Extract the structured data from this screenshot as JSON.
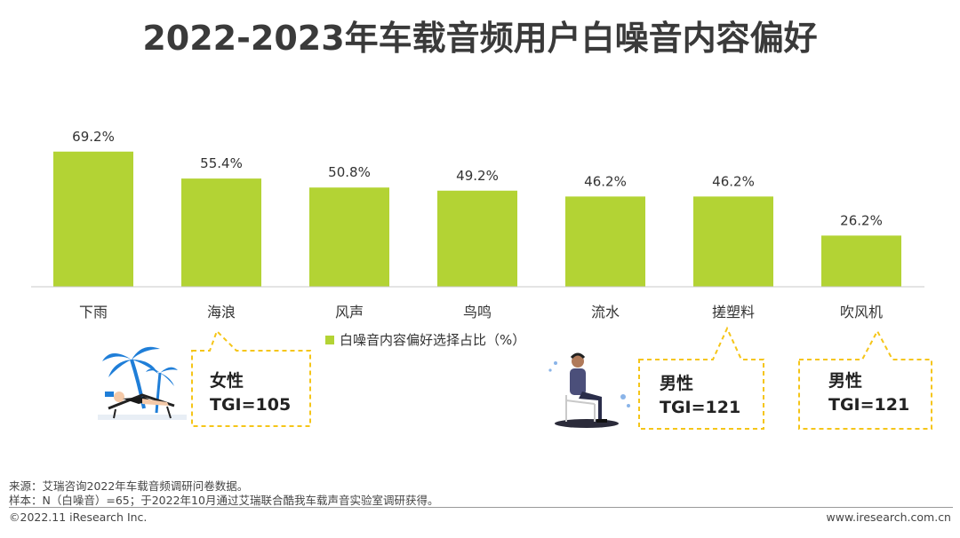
{
  "title": "2022-2023年车载音频用户白噪音内容偏好",
  "chart_data": {
    "type": "bar",
    "title": "2022-2023年车载音频用户白噪音内容偏好",
    "categories": [
      "下雨",
      "海浪",
      "风声",
      "鸟鸣",
      "流水",
      "搓塑料",
      "吹风机"
    ],
    "series": [
      {
        "name": "白噪音内容偏好选择占比（%）",
        "values": [
          69.2,
          55.4,
          50.8,
          49.2,
          46.2,
          46.2,
          26.2
        ]
      }
    ],
    "value_labels": [
      "69.2%",
      "55.4%",
      "50.8%",
      "49.2%",
      "46.2%",
      "46.2%",
      "26.2%"
    ],
    "ylim": [
      0,
      100
    ],
    "grid": false,
    "legend": "bottom-center",
    "bar_color": "#b3d334"
  },
  "callouts": [
    {
      "line1": "女性",
      "line2": "TGI=105"
    },
    {
      "line1": "男性",
      "line2": "TGI=121"
    },
    {
      "line1": "男性",
      "line2": "TGI=121"
    }
  ],
  "callout_border_color": "#f5c518",
  "footer": {
    "source": "来源：艾瑞咨询2022年车载音频调研问卷数据。",
    "sample": "样本：N（白噪音）=65；于2022年10月通过艾瑞联合酷我车载声音实验室调研获得。",
    "copyright": "©2022.11 iResearch Inc.",
    "website": "www.iresearch.com.cn"
  },
  "illustrations": [
    "beach-lounger-illustration",
    "seated-listener-illustration"
  ]
}
